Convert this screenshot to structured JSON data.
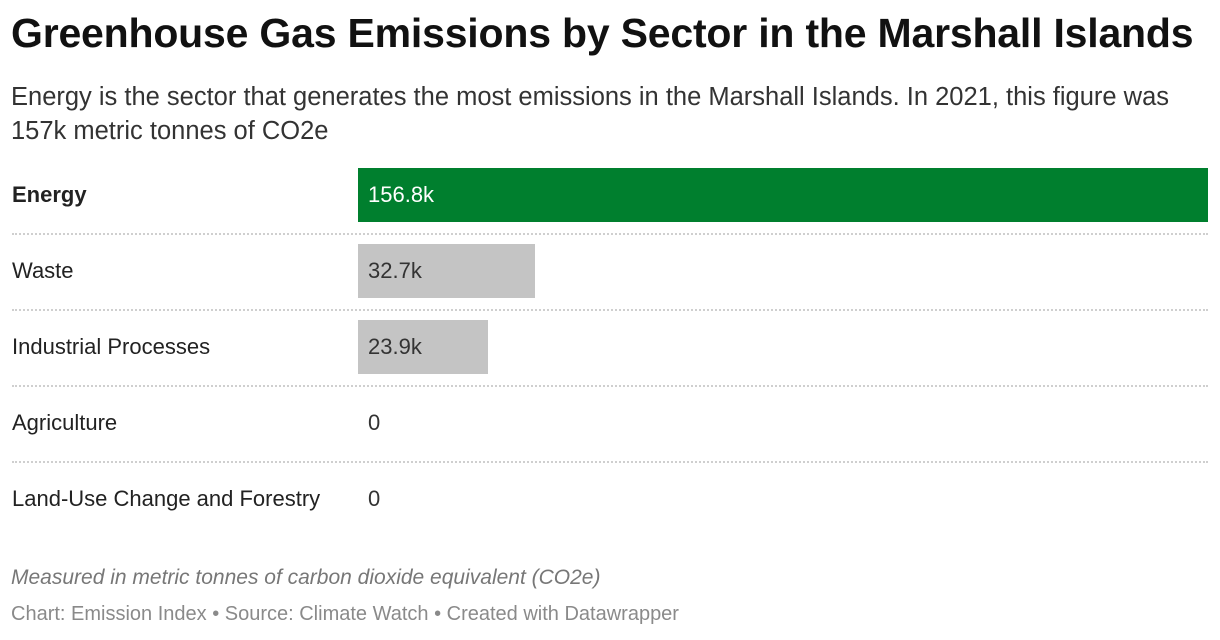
{
  "title": "Greenhouse Gas Emissions by Sector in the Marshall Islands",
  "subtitle": "Energy is the sector that generates the most emissions in the Marshall Islands. In 2021, this figure was 157k metric tonnes of CO2e",
  "note": "Measured in metric tonnes of carbon dioxide equivalent (CO2e)",
  "footer": "Chart: Emission Index • Source: Climate Watch • Created with Datawrapper",
  "colors": {
    "highlight": "#007f2e",
    "default": "#c4c4c4",
    "highlight_text": "#ffffff",
    "default_text": "#333333"
  },
  "chart_data": {
    "type": "bar",
    "orientation": "horizontal",
    "categories": [
      "Energy",
      "Waste",
      "Industrial Processes",
      "Agriculture",
      "Land-Use Change and Forestry"
    ],
    "values": [
      156800,
      32700,
      23900,
      0,
      0
    ],
    "value_labels": [
      "156.8k",
      "32.7k",
      "23.9k",
      "0",
      "0"
    ],
    "highlighted": [
      "Energy"
    ],
    "xlim": [
      0,
      156800
    ]
  }
}
